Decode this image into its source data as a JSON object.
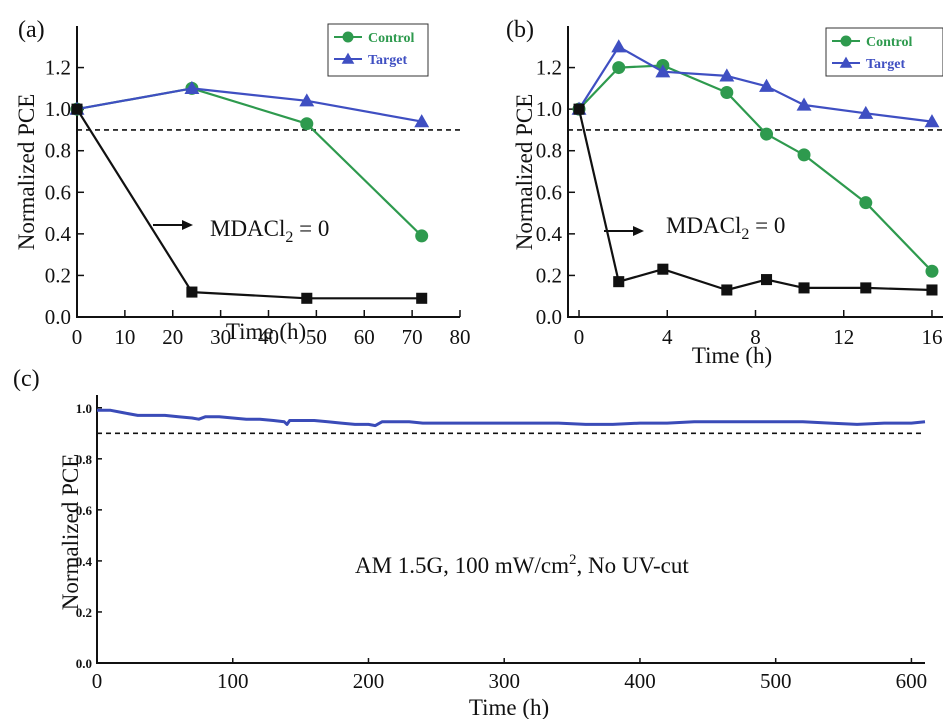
{
  "chart_data": [
    {
      "id": "a",
      "type": "line",
      "panel_label": "(a)",
      "xlabel": "Time (h)",
      "ylabel": "Normalized PCE",
      "xlim": [
        0,
        80
      ],
      "ylim": [
        0,
        1.4
      ],
      "xticks": [
        0,
        10,
        20,
        30,
        40,
        50,
        60,
        70,
        80
      ],
      "xtick_labels": [
        "0",
        "10",
        "20",
        "30",
        "40",
        "50",
        "60",
        "70",
        "80"
      ],
      "yticks": [
        0.0,
        0.2,
        0.4,
        0.6,
        0.8,
        1.0,
        1.2
      ],
      "ytick_labels": [
        "0.0",
        "0.2",
        "0.4",
        "0.6",
        "0.8",
        "1.0",
        "1.2"
      ],
      "reference_line": 0.9,
      "legend_position": "top-right",
      "annotation": {
        "prefix": "MDACl",
        "subscript": "2",
        "suffix": " = 0"
      },
      "series": [
        {
          "name": "Control",
          "color": "#2e9a4e",
          "marker": "circle",
          "in_legend": true,
          "x": [
            0,
            24,
            48,
            72
          ],
          "y": [
            1.0,
            1.1,
            0.93,
            0.39
          ]
        },
        {
          "name": "Target",
          "color": "#3f4fc2",
          "marker": "triangle",
          "in_legend": true,
          "x": [
            0,
            24,
            48,
            72
          ],
          "y": [
            1.0,
            1.1,
            1.04,
            0.94
          ]
        },
        {
          "name": "",
          "color": "#111111",
          "marker": "square",
          "in_legend": false,
          "x": [
            0,
            24,
            48,
            72
          ],
          "y": [
            1.0,
            0.12,
            0.09,
            0.09
          ]
        }
      ]
    },
    {
      "id": "b",
      "type": "line",
      "panel_label": "(b)",
      "xlabel": "Time (h)",
      "ylabel": "Normalized PCE",
      "xlim": [
        -0.5,
        16.5
      ],
      "ylim": [
        0,
        1.4
      ],
      "xticks": [
        0,
        4,
        8,
        12,
        16
      ],
      "xtick_labels": [
        "0",
        "4",
        "8",
        "12",
        "16"
      ],
      "yticks": [
        0.0,
        0.2,
        0.4,
        0.6,
        0.8,
        1.0,
        1.2
      ],
      "ytick_labels": [
        "0.0",
        "0.2",
        "0.4",
        "0.6",
        "0.8",
        "1.0",
        "1.2"
      ],
      "reference_line": 0.9,
      "legend_position": "top-right",
      "annotation": {
        "prefix": "MDACl",
        "subscript": "2",
        "suffix": " = 0"
      },
      "series": [
        {
          "name": "Control",
          "color": "#2e9a4e",
          "marker": "circle",
          "in_legend": true,
          "x": [
            0,
            1.8,
            3.8,
            6.7,
            8.5,
            10.2,
            13.0,
            16.0
          ],
          "y": [
            1.0,
            1.2,
            1.21,
            1.08,
            0.88,
            0.78,
            0.55,
            0.22
          ]
        },
        {
          "name": "Target",
          "color": "#3f4fc2",
          "marker": "triangle",
          "in_legend": true,
          "x": [
            0,
            1.8,
            3.8,
            6.7,
            8.5,
            10.2,
            13.0,
            16.0
          ],
          "y": [
            1.0,
            1.3,
            1.18,
            1.16,
            1.11,
            1.02,
            0.98,
            0.94
          ]
        },
        {
          "name": "",
          "color": "#111111",
          "marker": "square",
          "in_legend": false,
          "x": [
            0,
            1.8,
            3.8,
            6.7,
            8.5,
            10.2,
            13.0,
            16.0
          ],
          "y": [
            1.0,
            0.17,
            0.23,
            0.13,
            0.18,
            0.14,
            0.14,
            0.13
          ]
        }
      ]
    },
    {
      "id": "c",
      "type": "line",
      "panel_label": "(c)",
      "xlabel": "Time (h)",
      "ylabel": "Normalized PCE",
      "xlim": [
        0,
        610
      ],
      "ylim": [
        0,
        1.05
      ],
      "xticks": [
        0,
        100,
        200,
        300,
        400,
        500,
        600
      ],
      "xtick_labels": [
        "0",
        "100",
        "200",
        "300",
        "400",
        "500",
        "600"
      ],
      "yticks": [
        0.0,
        0.2,
        0.4,
        0.6,
        0.8,
        1.0
      ],
      "ytick_labels": [
        "0.0",
        "0.2",
        "0.4",
        "0.6",
        "0.8",
        "1.0"
      ],
      "reference_line": 0.9,
      "annotation": {
        "prefix": "AM 1.5G, 100 mW/cm",
        "superscript": "2",
        "suffix": ", No UV-cut"
      },
      "series": [
        {
          "name": "",
          "color": "#3a4bb8",
          "marker": "none",
          "x": [
            0,
            10,
            20,
            30,
            40,
            50,
            60,
            70,
            75,
            80,
            90,
            100,
            110,
            120,
            130,
            138,
            140,
            142,
            150,
            160,
            170,
            180,
            190,
            200,
            205,
            210,
            220,
            230,
            240,
            250,
            260,
            280,
            300,
            320,
            340,
            360,
            380,
            400,
            420,
            440,
            460,
            480,
            500,
            520,
            540,
            560,
            580,
            600,
            610
          ],
          "y": [
            0.99,
            0.99,
            0.98,
            0.97,
            0.97,
            0.97,
            0.965,
            0.96,
            0.955,
            0.965,
            0.965,
            0.96,
            0.955,
            0.955,
            0.95,
            0.945,
            0.935,
            0.95,
            0.95,
            0.95,
            0.945,
            0.94,
            0.935,
            0.935,
            0.93,
            0.945,
            0.945,
            0.945,
            0.94,
            0.94,
            0.94,
            0.94,
            0.94,
            0.94,
            0.94,
            0.935,
            0.935,
            0.94,
            0.94,
            0.945,
            0.945,
            0.945,
            0.945,
            0.945,
            0.94,
            0.935,
            0.94,
            0.94,
            0.945
          ]
        }
      ]
    }
  ]
}
